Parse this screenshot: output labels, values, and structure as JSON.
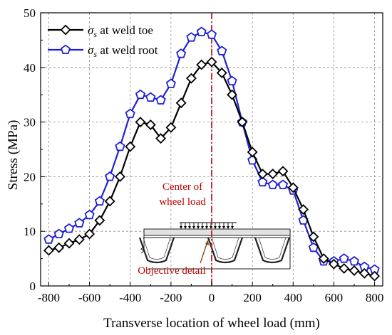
{
  "chart_data": {
    "type": "line",
    "xlabel": "Transverse location of wheel load (mm)",
    "ylabel": "Stress (MPa)",
    "xlim": [
      -840,
      840
    ],
    "ylim": [
      0,
      50
    ],
    "xticks": [
      -800,
      -600,
      -400,
      -200,
      0,
      200,
      400,
      600,
      800
    ],
    "yticks": [
      0,
      10,
      20,
      30,
      40,
      50
    ],
    "grid": "dashed",
    "legend_position": "top-left",
    "series": [
      {
        "name": "σs at weld toe",
        "legend_symbol": "σ",
        "legend_subscript": "s",
        "legend_rest": " at weld toe",
        "color": "#000000",
        "marker": "diamond",
        "x": [
          -800,
          -750,
          -700,
          -650,
          -600,
          -550,
          -500,
          -450,
          -400,
          -350,
          -300,
          -250,
          -200,
          -150,
          -100,
          -50,
          0,
          50,
          100,
          150,
          200,
          250,
          300,
          350,
          400,
          450,
          500,
          550,
          600,
          650,
          700,
          750,
          800
        ],
        "y": [
          6.5,
          7.0,
          7.8,
          8.5,
          9.5,
          12.0,
          15.5,
          20.0,
          25.5,
          30.0,
          29.5,
          27.0,
          29.0,
          33.5,
          38.0,
          40.5,
          41.0,
          39.0,
          35.0,
          30.0,
          24.5,
          20.5,
          20.5,
          21.0,
          18.0,
          14.0,
          9.0,
          5.0,
          4.0,
          3.2,
          2.8,
          2.3,
          1.8
        ]
      },
      {
        "name": "σs at weld root",
        "legend_symbol": "σ",
        "legend_subscript": "s",
        "legend_rest": " at weld root",
        "color": "#1f1fd6",
        "marker": "pentagon",
        "x": [
          -800,
          -750,
          -700,
          -650,
          -600,
          -550,
          -500,
          -450,
          -400,
          -350,
          -300,
          -250,
          -200,
          -150,
          -100,
          -50,
          0,
          50,
          100,
          150,
          200,
          250,
          300,
          350,
          400,
          450,
          500,
          550,
          600,
          650,
          700,
          750,
          800
        ],
        "y": [
          8.5,
          9.5,
          10.5,
          11.5,
          13.0,
          15.5,
          20.0,
          25.5,
          31.5,
          35.0,
          34.5,
          34.0,
          37.0,
          42.5,
          45.5,
          46.5,
          46.0,
          43.0,
          37.5,
          30.0,
          23.0,
          19.0,
          18.5,
          18.5,
          17.5,
          12.0,
          7.0,
          4.5,
          4.5,
          5.0,
          4.5,
          3.5,
          3.0
        ]
      }
    ],
    "annotations": {
      "center_line_x": 0,
      "center_label_line1": "Center of",
      "center_label_line2": "wheel load",
      "detail_label": "Objective detail"
    }
  }
}
